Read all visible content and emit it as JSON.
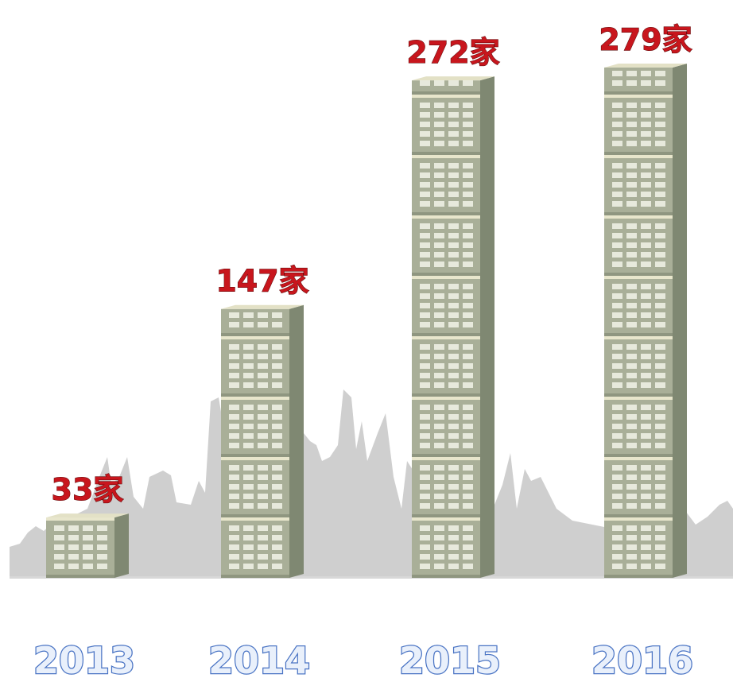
{
  "chart_data": {
    "type": "bar",
    "categories": [
      "2013",
      "2014",
      "2015",
      "2016"
    ],
    "values": [
      33,
      147,
      272,
      279
    ],
    "value_labels": [
      "33家",
      "147家",
      "272家",
      "279家"
    ],
    "color": "#a9af98"
  }
}
